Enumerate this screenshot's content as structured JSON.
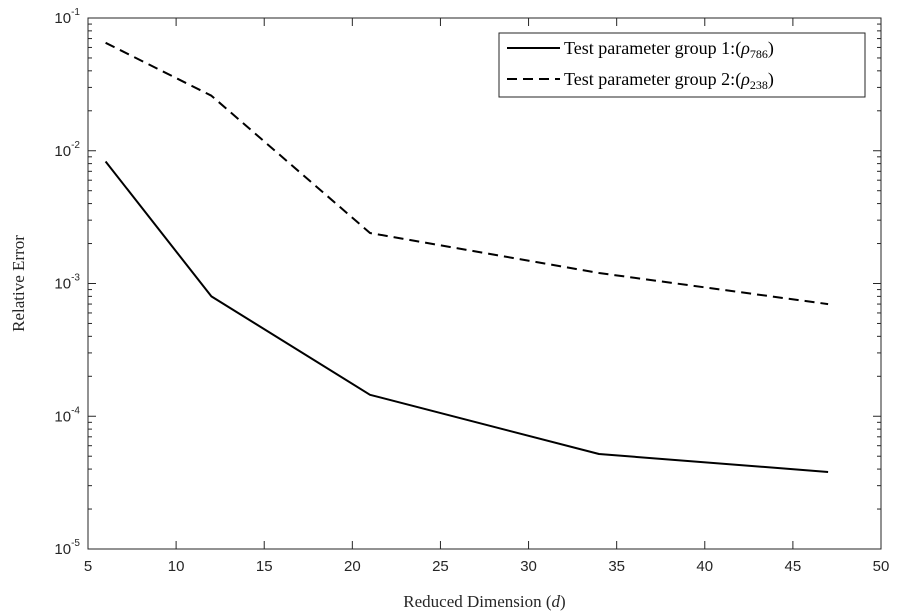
{
  "chart_data": {
    "type": "line",
    "title": "",
    "xlabel": "Reduced Dimension",
    "xlabel_var": "d",
    "ylabel": "Relative Error",
    "xlim": [
      5,
      50
    ],
    "ylim": [
      1e-05,
      0.1
    ],
    "yscale": "log",
    "xticks": [
      5,
      10,
      15,
      20,
      25,
      30,
      35,
      40,
      45,
      50
    ],
    "yticks": [
      {
        "value": 1e-05,
        "base": "10",
        "exp": "-5"
      },
      {
        "value": 0.0001,
        "base": "10",
        "exp": "-4"
      },
      {
        "value": 0.001,
        "base": "10",
        "exp": "-3"
      },
      {
        "value": 0.01,
        "base": "10",
        "exp": "-2"
      },
      {
        "value": 0.1,
        "base": "10",
        "exp": "-1"
      }
    ],
    "grid": false,
    "legend_position": "top-right",
    "x": [
      6,
      12,
      21,
      34,
      47
    ],
    "series": [
      {
        "name": "Test parameter group 1:",
        "name_sub": "786",
        "style": "solid",
        "color": "#000000",
        "values": [
          0.0083,
          0.0008,
          0.000145,
          5.2e-05,
          3.8e-05
        ]
      },
      {
        "name": "Test parameter group 2:",
        "name_sub": "238",
        "style": "dashed",
        "color": "#000000",
        "values": [
          0.065,
          0.026,
          0.0024,
          0.0012,
          0.0007
        ]
      }
    ]
  }
}
